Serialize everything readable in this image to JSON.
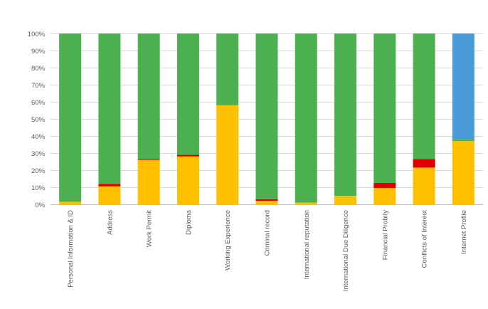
{
  "colors": {
    "yellow": "#FFC000",
    "red": "#E00000",
    "green": "#4CB050",
    "blue": "#4A9BDA",
    "grid": "#D9D9D9",
    "text": "#595959"
  },
  "chart_data": {
    "type": "bar",
    "stacked": true,
    "percent": true,
    "title": "",
    "xlabel": "",
    "ylabel": "",
    "ylim": [
      0,
      100
    ],
    "yticks": [
      0,
      10,
      20,
      30,
      40,
      50,
      60,
      70,
      80,
      90,
      100
    ],
    "ytick_labels": [
      "0%",
      "10%",
      "20%",
      "30%",
      "40%",
      "50%",
      "60%",
      "70%",
      "80%",
      "90%",
      "100%"
    ],
    "grid": true,
    "legend": "none",
    "categories": [
      "Personal Information & ID",
      "Address",
      "Work Permit",
      "Diploma",
      "Working Experience",
      "Criminal record",
      "International reputation",
      "International Due Diligence",
      "Financial Probity",
      "Conflicts of Interest",
      "Internet Profile"
    ],
    "series": [
      {
        "name": "Yellow",
        "color": "#FFC000",
        "values": [
          1.5,
          10.5,
          26,
          28,
          58,
          2,
          1,
          5,
          9.5,
          21.5,
          37
        ]
      },
      {
        "name": "Red",
        "color": "#E00000",
        "values": [
          0,
          1.5,
          0.5,
          1,
          0,
          1,
          0,
          0,
          3,
          5,
          0
        ]
      },
      {
        "name": "Green",
        "color": "#4CB050",
        "values": [
          98.5,
          88,
          73.5,
          71,
          42,
          97,
          99,
          95,
          87.5,
          73.5,
          1
        ]
      },
      {
        "name": "Blue",
        "color": "#4A9BDA",
        "values": [
          0,
          0,
          0,
          0,
          0,
          0,
          0,
          0,
          0,
          0,
          62
        ]
      }
    ]
  }
}
